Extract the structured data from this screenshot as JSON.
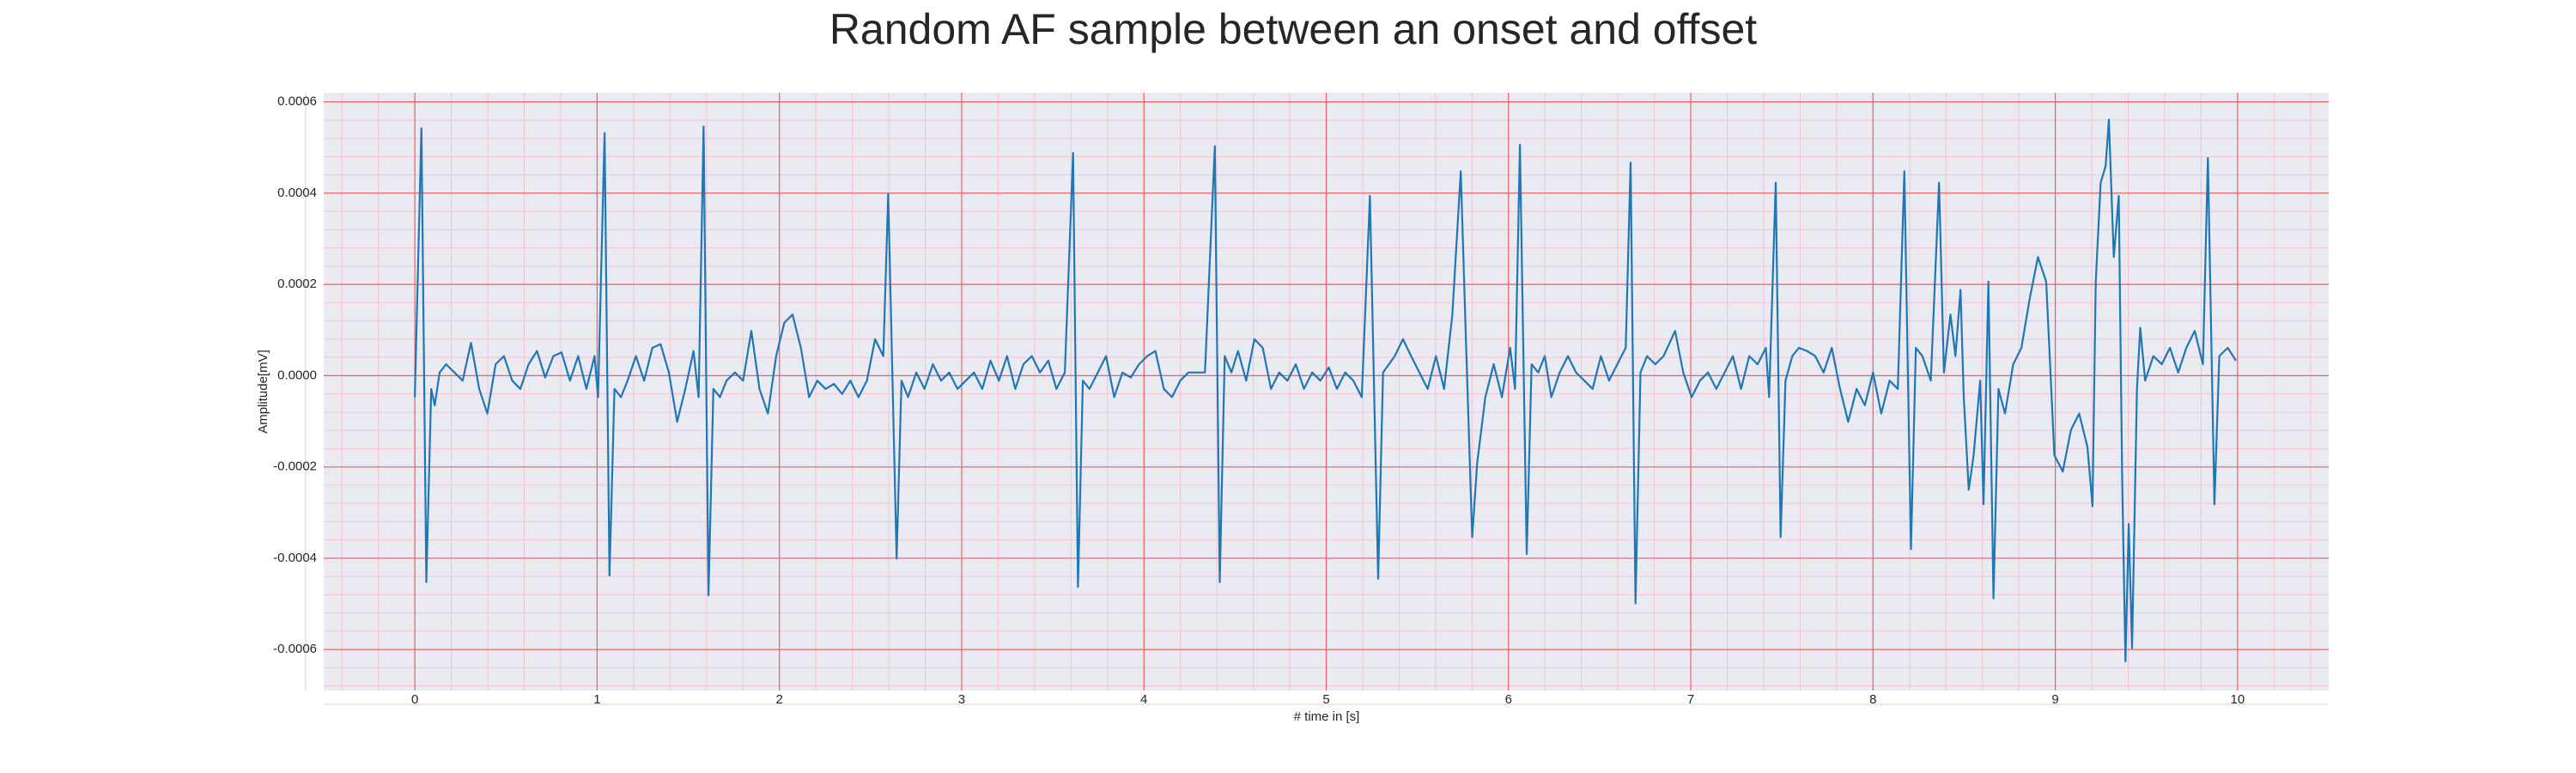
{
  "chart_data": {
    "type": "line",
    "title": "Random AF sample between an onset and offset",
    "xlabel": "# time in [s]",
    "ylabel": "Amplitude[mV]",
    "xlim": [
      -0.5,
      10.5
    ],
    "ylim": [
      -0.00069,
      0.00062
    ],
    "xticks": [
      0,
      1,
      2,
      3,
      4,
      5,
      6,
      7,
      8,
      9,
      10
    ],
    "yticks": [
      {
        "value": -0.0006,
        "label": "-0.0006"
      },
      {
        "value": -0.0004,
        "label": "-0.0004"
      },
      {
        "value": -0.0002,
        "label": "-0.0002"
      },
      {
        "value": 0,
        "label": "0.0000"
      },
      {
        "value": 0.0002,
        "label": "0.0002"
      },
      {
        "value": 0.0004,
        "label": "0.0004"
      },
      {
        "value": 0.0006,
        "label": "0.0006"
      }
    ],
    "grid": true,
    "background": "#eaeaf2",
    "grid_color": "#f06060",
    "minor_grid_color": "#f5c4d0",
    "color": "#1f77b4",
    "x": [
      0,
      0.036,
      0.063,
      0.09,
      0.109,
      0.136,
      0.172,
      0.217,
      0.262,
      0.308,
      0.353,
      0.398,
      0.443,
      0.489,
      0.534,
      0.579,
      0.624,
      0.67,
      0.715,
      0.76,
      0.805,
      0.851,
      0.896,
      0.941,
      0.986,
      1.005,
      1.041,
      1.068,
      1.095,
      1.131,
      1.167,
      1.213,
      1.258,
      1.303,
      1.348,
      1.394,
      1.439,
      1.484,
      1.529,
      1.557,
      1.584,
      1.611,
      1.638,
      1.674,
      1.71,
      1.756,
      1.801,
      1.846,
      1.891,
      1.937,
      1.982,
      2.027,
      2.072,
      2.118,
      2.163,
      2.208,
      2.253,
      2.299,
      2.344,
      2.389,
      2.434,
      2.48,
      2.525,
      2.57,
      2.597,
      2.643,
      2.67,
      2.706,
      2.751,
      2.796,
      2.842,
      2.887,
      2.932,
      2.977,
      3.023,
      3.068,
      3.113,
      3.158,
      3.204,
      3.249,
      3.294,
      3.339,
      3.385,
      3.43,
      3.475,
      3.52,
      3.566,
      3.611,
      3.638,
      3.665,
      3.701,
      3.747,
      3.792,
      3.837,
      3.882,
      3.928,
      3.973,
      4.018,
      4.063,
      4.109,
      4.154,
      4.199,
      4.244,
      4.335,
      4.389,
      4.416,
      4.443,
      4.48,
      4.516,
      4.561,
      4.606,
      4.652,
      4.697,
      4.742,
      4.787,
      4.833,
      4.878,
      4.923,
      4.968,
      5.014,
      5.059,
      5.104,
      5.149,
      5.195,
      5.24,
      5.285,
      5.312,
      5.376,
      5.421,
      5.466,
      5.511,
      5.557,
      5.602,
      5.647,
      5.692,
      5.738,
      5.765,
      5.801,
      5.828,
      5.873,
      5.919,
      5.964,
      6.009,
      6.036,
      6.063,
      6.1,
      6.127,
      6.163,
      6.199,
      6.235,
      6.281,
      6.326,
      6.371,
      6.416,
      6.462,
      6.507,
      6.552,
      6.597,
      6.643,
      6.67,
      6.697,
      6.724,
      6.76,
      6.805,
      6.851,
      6.914,
      6.959,
      7.005,
      7.05,
      7.095,
      7.14,
      7.186,
      7.231,
      7.276,
      7.321,
      7.367,
      7.412,
      7.43,
      7.466,
      7.493,
      7.52,
      7.557,
      7.593,
      7.638,
      7.683,
      7.729,
      7.774,
      7.819,
      7.864,
      7.91,
      7.955,
      8.0,
      8.045,
      8.091,
      8.136,
      8.172,
      8.208,
      8.235,
      8.271,
      8.317,
      8.362,
      8.389,
      8.425,
      8.452,
      8.48,
      8.498,
      8.525,
      8.552,
      8.588,
      8.606,
      8.633,
      8.661,
      8.688,
      8.724,
      8.769,
      8.814,
      8.86,
      8.905,
      8.95,
      8.995,
      9.041,
      9.086,
      9.131,
      9.176,
      9.204,
      9.222,
      9.249,
      9.276,
      9.294,
      9.321,
      9.348,
      9.367,
      9.385,
      9.403,
      9.421,
      9.448,
      9.466,
      9.493,
      9.538,
      9.584,
      9.629,
      9.674,
      9.719,
      9.765,
      9.81,
      9.837,
      9.873,
      9.9,
      9.946,
      9.991
    ],
    "values": [
      -4.7e-05,
      0.000542,
      -0.000452,
      -2.9e-05,
      -6.5e-05,
      7e-06,
      2.5e-05,
      7e-06,
      -1.1e-05,
      7.2e-05,
      -2.9e-05,
      -8.3e-05,
      2.5e-05,
      4.3e-05,
      -1.1e-05,
      -2.9e-05,
      2.5e-05,
      5.4e-05,
      -4e-06,
      4.3e-05,
      5.1e-05,
      -1.1e-05,
      4.3e-05,
      -2.9e-05,
      4.3e-05,
      -4.7e-05,
      0.000532,
      -0.000438,
      -2.9e-05,
      -4.7e-05,
      -1.1e-05,
      4.3e-05,
      -1.1e-05,
      6.1e-05,
      6.9e-05,
      7e-06,
      -0.000101,
      -2.9e-05,
      5.4e-05,
      -4.7e-05,
      0.000546,
      -0.000481,
      -2.9e-05,
      -4.7e-05,
      -1.1e-05,
      7e-06,
      -1.1e-05,
      9.8e-05,
      -2.9e-05,
      -8.3e-05,
      4.3e-05,
      0.000116,
      0.000134,
      6.1e-05,
      -4.7e-05,
      -1.1e-05,
      -2.9e-05,
      -1.8e-05,
      -4e-05,
      -1.1e-05,
      -4.7e-05,
      -1.1e-05,
      8e-05,
      4.3e-05,
      0.000398,
      -0.000401,
      -1.1e-05,
      -4.7e-05,
      7e-06,
      -2.9e-05,
      2.5e-05,
      -1.1e-05,
      7e-06,
      -2.9e-05,
      -1.1e-05,
      7e-06,
      -2.9e-05,
      3.3e-05,
      -1.1e-05,
      4.3e-05,
      -2.9e-05,
      2.5e-05,
      4.3e-05,
      7e-06,
      3.3e-05,
      -2.9e-05,
      7e-06,
      0.000488,
      -0.000463,
      -1.1e-05,
      -2.9e-05,
      7e-06,
      4.3e-05,
      -4.7e-05,
      7e-06,
      -4e-06,
      2.5e-05,
      4.3e-05,
      5.4e-05,
      -2.9e-05,
      -4.7e-05,
      -1.1e-05,
      7e-06,
      7e-06,
      0.000503,
      -0.000452,
      4.3e-05,
      7e-06,
      5.4e-05,
      -1.1e-05,
      8e-05,
      6.1e-05,
      -2.9e-05,
      7e-06,
      -1.1e-05,
      2.5e-05,
      -2.9e-05,
      7e-06,
      -1.1e-05,
      1.8e-05,
      -2.9e-05,
      7e-06,
      -1.1e-05,
      -4.7e-05,
      0.000394,
      -0.000445,
      7e-06,
      4.3e-05,
      8e-05,
      4.3e-05,
      7e-06,
      -2.9e-05,
      4.3e-05,
      -2.9e-05,
      0.000134,
      0.000448,
      9.8e-05,
      -0.000354,
      -0.000192,
      -4.7e-05,
      2.5e-05,
      -4.7e-05,
      6.1e-05,
      -2.9e-05,
      0.000506,
      -0.000391,
      2.5e-05,
      7e-06,
      4.3e-05,
      -4.7e-05,
      7e-06,
      4.3e-05,
      7e-06,
      -1.1e-05,
      -2.9e-05,
      4.3e-05,
      -1.1e-05,
      2.5e-05,
      6.1e-05,
      0.000467,
      -0.000499,
      7e-06,
      4.3e-05,
      2.5e-05,
      4.3e-05,
      9.8e-05,
      7e-06,
      -4.7e-05,
      -1.1e-05,
      7e-06,
      -2.9e-05,
      7e-06,
      4.3e-05,
      -2.9e-05,
      4.3e-05,
      2.5e-05,
      6.1e-05,
      -4.7e-05,
      0.000423,
      -0.000354,
      -1.1e-05,
      4.3e-05,
      6.1e-05,
      5.4e-05,
      4.3e-05,
      7e-06,
      6.1e-05,
      -2.9e-05,
      -0.000101,
      -2.9e-05,
      -6.5e-05,
      7e-06,
      -8.3e-05,
      -1.1e-05,
      -2.9e-05,
      0.000448,
      -0.00038,
      6.1e-05,
      4.3e-05,
      -1.1e-05,
      0.000423,
      7e-06,
      0.000134,
      4.3e-05,
      0.000188,
      -4.7e-05,
      -0.00025,
      -0.000174,
      -1.1e-05,
      -0.000282,
      0.000206,
      -0.000488,
      -2.9e-05,
      -8.3e-05,
      2.5e-05,
      6.1e-05,
      0.00017,
      0.00026,
      0.000206,
      -0.000174,
      -0.00021,
      -0.000119,
      -8.3e-05,
      -0.000156,
      -0.000286,
      0.000206,
      0.000423,
      0.000459,
      0.000561,
      0.00026,
      0.000394,
      -0.000228,
      -0.000626,
      -0.000325,
      -0.000597,
      -2.9e-05,
      0.000105,
      -1.1e-05,
      4.3e-05,
      2.5e-05,
      6.1e-05,
      7e-06,
      6.1e-05,
      9.8e-05,
      2.5e-05,
      0.000477,
      -0.000282,
      4.3e-05,
      6.1e-05,
      3.3e-05
    ]
  }
}
